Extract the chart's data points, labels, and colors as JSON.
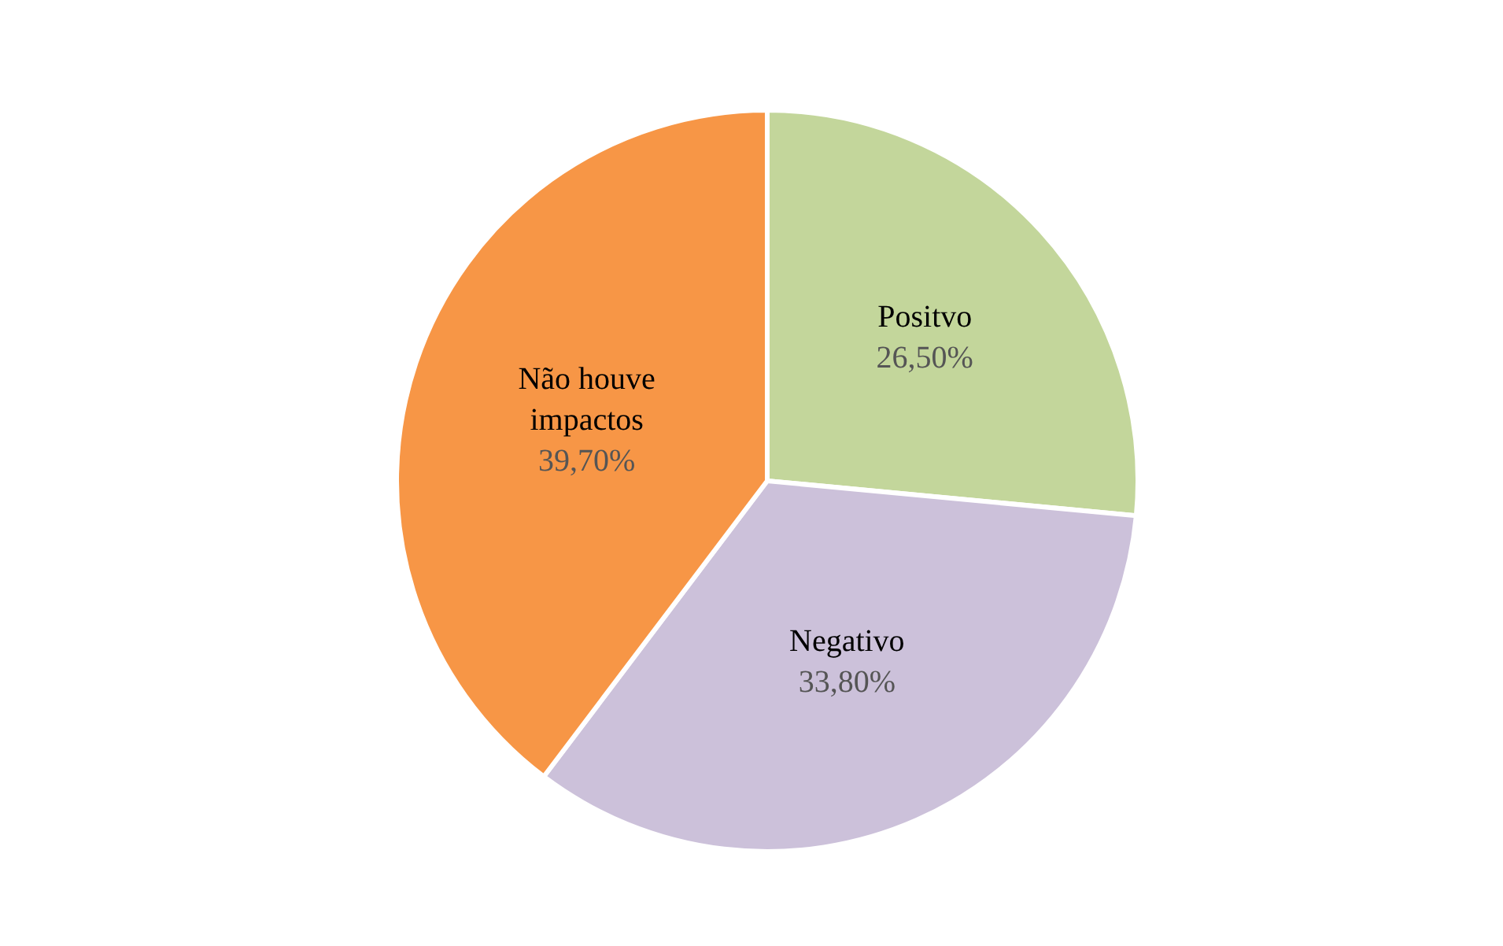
{
  "chart_data": {
    "type": "pie",
    "categories": [
      "Positvo",
      "Negativo",
      "Não houve impactos"
    ],
    "values": [
      26.5,
      33.8,
      39.7
    ],
    "value_labels": [
      "26,50%",
      "33,80%",
      "39,70%"
    ],
    "colors": [
      "#c3d69b",
      "#ccc1da",
      "#f79646"
    ]
  }
}
